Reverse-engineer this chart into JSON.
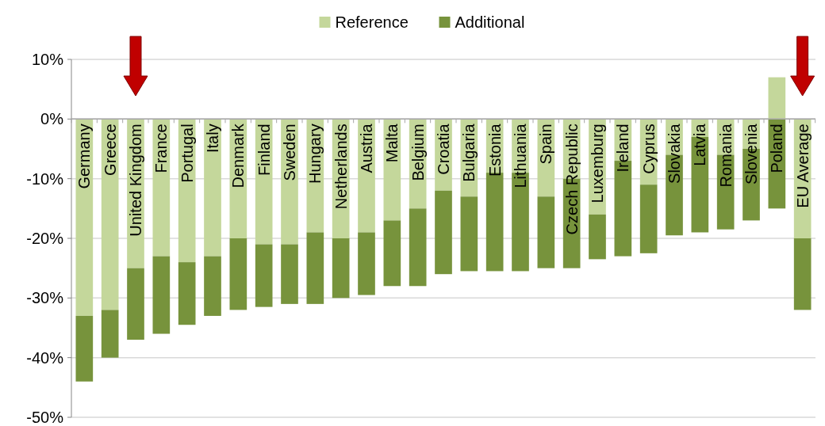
{
  "chart_data": {
    "type": "bar",
    "stacked": true,
    "categories": [
      "Germany",
      "Greece",
      "United Kingdom",
      "France",
      "Portugal",
      "Italy",
      "Denmark",
      "Finland",
      "Sweden",
      "Hungary",
      "Netherlands",
      "Austria",
      "Malta",
      "Belgium",
      "Croatia",
      "Bulgaria",
      "Estonia",
      "Lithuania",
      "Spain",
      "Czech Republic",
      "Luxemburg",
      "Ireland",
      "Cyprus",
      "Slovakia",
      "Latvia",
      "Romania",
      "Slovenia",
      "Poland",
      "EU Average"
    ],
    "series": [
      {
        "name": "Reference",
        "color": "#c4d79b",
        "values": [
          -33,
          -32,
          -25,
          -23,
          -24,
          -23,
          -20,
          -21,
          -21,
          -19,
          -20,
          -19,
          -17,
          -15,
          -12,
          -13,
          -9,
          -9,
          -13,
          -10,
          -16,
          -7,
          -11,
          -6,
          -3,
          -6,
          -5,
          7,
          -20
        ]
      },
      {
        "name": "Additional",
        "color": "#77933c",
        "values": [
          -11,
          -8,
          -12,
          -13,
          -10.5,
          -10,
          -12,
          -10.5,
          -10,
          -12,
          -10,
          -10.5,
          -11,
          -13,
          -14,
          -12.5,
          -16.5,
          -16.5,
          -12,
          -15,
          -7.5,
          -16,
          -11.5,
          -13.5,
          -16,
          -12.5,
          -12,
          -15,
          -12
        ]
      }
    ],
    "ylim": [
      -50,
      10
    ],
    "yticks": [
      {
        "value": 10,
        "label": "10%"
      },
      {
        "value": 0,
        "label": "0%"
      },
      {
        "value": -10,
        "label": "-10%"
      },
      {
        "value": -20,
        "label": "-20%"
      },
      {
        "value": -30,
        "label": "-30%"
      },
      {
        "value": -40,
        "label": "-40%"
      },
      {
        "value": -50,
        "label": "-50%"
      }
    ],
    "grid": "y",
    "legend": "top"
  }
}
